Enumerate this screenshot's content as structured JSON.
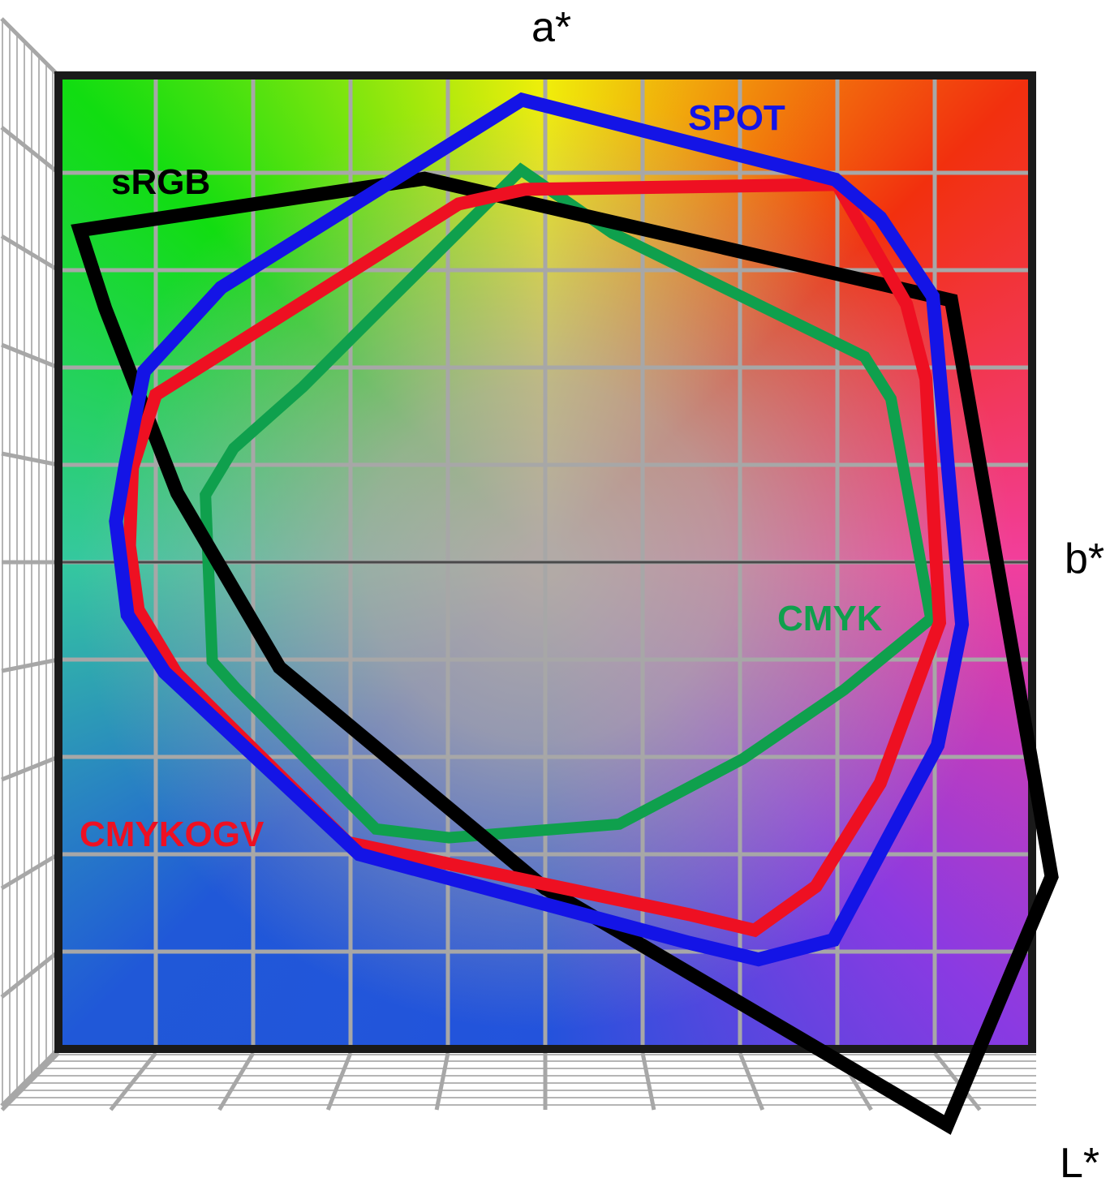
{
  "chart_data": {
    "type": "line",
    "title": "",
    "xlabel": "a*",
    "ylabel": "b*",
    "depth_axis_label": "L*",
    "axis_ticks": "none shown; 10 x 10 grid over the a*/b* plane, coordinates below are in grid cells measured from the plot center (darker horizontal line = b* center line)",
    "grid": {
      "columns": 10,
      "rows": 10,
      "shown": true
    },
    "legend_position": "labels placed inline next to each gamut outline",
    "series": [
      {
        "name": "CMYK",
        "color": "#0fa04d",
        "shape": "closed polygon gamut outline",
        "points": [
          [
            -0.25,
            4.03
          ],
          [
            0.69,
            3.38
          ],
          [
            3.28,
            2.11
          ],
          [
            3.55,
            1.68
          ],
          [
            3.96,
            -0.58
          ],
          [
            3.07,
            -1.31
          ],
          [
            2.03,
            -2.02
          ],
          [
            0.76,
            -2.69
          ],
          [
            -0.99,
            -2.83
          ],
          [
            -1.74,
            -2.74
          ],
          [
            -3.18,
            -1.29
          ],
          [
            -3.42,
            -1.02
          ],
          [
            -3.49,
            0.69
          ],
          [
            -3.2,
            1.17
          ],
          [
            -2.49,
            1.8
          ],
          [
            -1.68,
            2.61
          ]
        ]
      },
      {
        "name": "sRGB",
        "color": "#000000",
        "shape": "closed polygon gamut outline",
        "points": [
          [
            -4.78,
            3.41
          ],
          [
            -1.24,
            3.94
          ],
          [
            4.17,
            2.69
          ],
          [
            5.2,
            -3.23
          ],
          [
            4.13,
            -5.78
          ],
          [
            0.0,
            -3.35
          ],
          [
            -2.73,
            -1.08
          ],
          [
            -3.78,
            0.71
          ],
          [
            -4.52,
            2.61
          ]
        ]
      },
      {
        "name": "CMYKOGV",
        "color": "#ee1022",
        "shape": "closed polygon gamut outline",
        "points": [
          [
            -0.21,
            3.83
          ],
          [
            3.0,
            3.88
          ],
          [
            3.71,
            2.65
          ],
          [
            3.91,
            1.88
          ],
          [
            4.05,
            -0.62
          ],
          [
            3.44,
            -2.27
          ],
          [
            2.78,
            -3.33
          ],
          [
            2.15,
            -3.78
          ],
          [
            1.48,
            -3.62
          ],
          [
            -2.03,
            -2.88
          ],
          [
            -3.79,
            -1.14
          ],
          [
            -4.18,
            -0.49
          ],
          [
            -4.27,
            0.17
          ],
          [
            -4.24,
            0.97
          ],
          [
            -4.0,
            1.72
          ],
          [
            -0.89,
            3.68
          ]
        ]
      },
      {
        "name": "SPOT",
        "color": "#1414e6",
        "shape": "closed polygon gamut outline",
        "points": [
          [
            -0.24,
            4.75
          ],
          [
            2.98,
            3.93
          ],
          [
            3.44,
            3.54
          ],
          [
            3.98,
            2.73
          ],
          [
            4.28,
            -0.64
          ],
          [
            4.03,
            -1.88
          ],
          [
            2.96,
            -3.88
          ],
          [
            2.19,
            -4.08
          ],
          [
            1.48,
            -3.91
          ],
          [
            -1.91,
            -3.0
          ],
          [
            -3.91,
            -1.13
          ],
          [
            -4.29,
            -0.54
          ],
          [
            -4.41,
            0.42
          ],
          [
            -4.31,
            1.01
          ],
          [
            -4.12,
            1.96
          ],
          [
            -3.33,
            2.82
          ]
        ]
      }
    ]
  },
  "background": {
    "top": "#f0ee0a",
    "top_right": "#f2300e",
    "right": "#f23e9c",
    "bottom_right": "#8a3ae2",
    "bottom": "#2353dc",
    "bottom_left": "#2058d8",
    "left": "#35c89f",
    "top_left": "#11dd11",
    "center": "#b2aaa6",
    "grid_line": "#a7a7a7",
    "center_line": "#4a4a4a",
    "border": "#1a1a1a",
    "perspective_thin_line": "#b5b5b5"
  }
}
